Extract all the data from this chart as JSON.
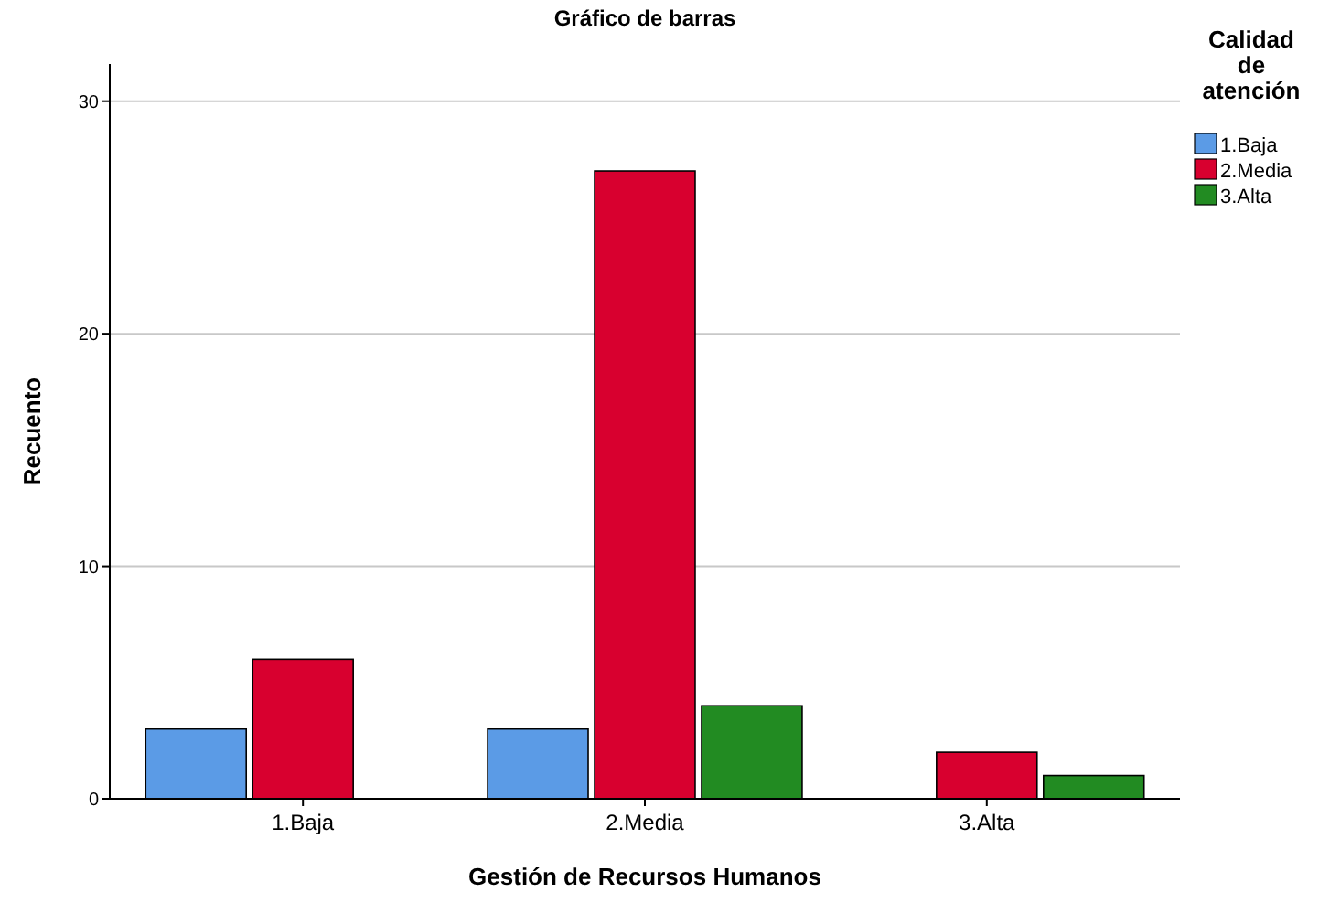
{
  "chart_data": {
    "type": "bar",
    "title": "Gráfico de barras",
    "xlabel": "Gestión de Recursos Humanos",
    "ylabel": "Recuento",
    "legend_title": "Calidad de atención",
    "categories": [
      "1.Baja",
      "2.Media",
      "3.Alta"
    ],
    "series": [
      {
        "name": "1.Baja",
        "color": "#5b9be6",
        "values": [
          3,
          3,
          null
        ]
      },
      {
        "name": "2.Media",
        "color": "#d8002f",
        "values": [
          6,
          27,
          2
        ]
      },
      {
        "name": "3.Alta",
        "color": "#228b22",
        "values": [
          null,
          4,
          1
        ]
      }
    ],
    "ylim": [
      0,
      31.6
    ],
    "yticks": [
      0,
      10,
      20,
      30
    ],
    "grid": "y",
    "legend": "top right"
  }
}
